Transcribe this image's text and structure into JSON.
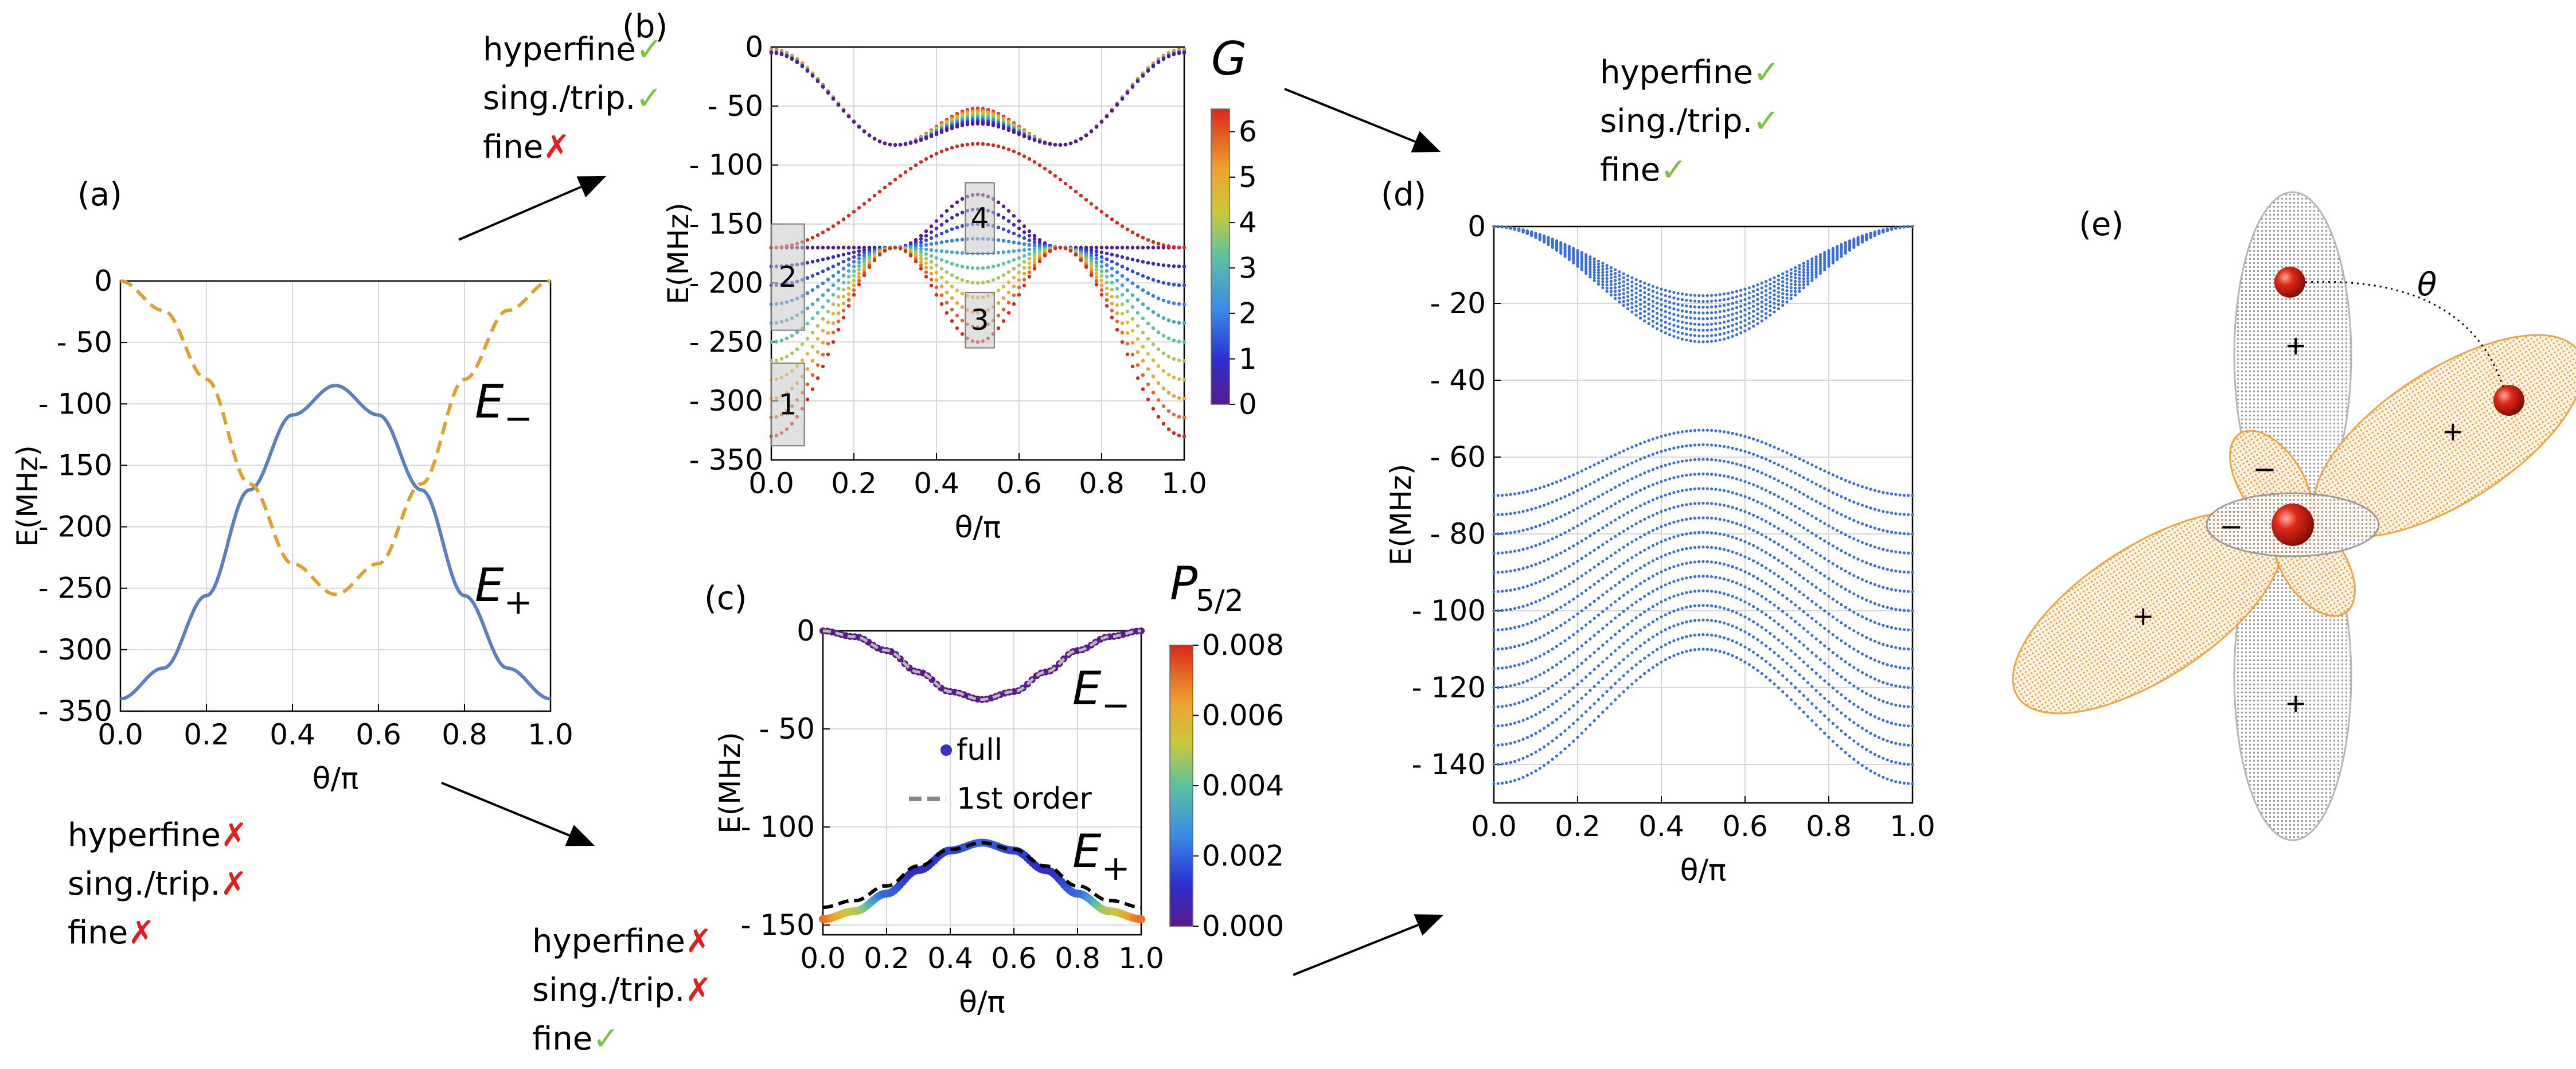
{
  "colors": {
    "blue": "#5b7fbf",
    "orange": "#e0a030",
    "dots": "#3a6fd8",
    "check": "#7cc242",
    "cross": "#e02020",
    "grid": "#d8d8d8",
    "gray_box": "#c8c8c8",
    "sphere": "#cc1a10",
    "lobe_orange": "#f5a040",
    "lobe_gray": "#9a9a9a"
  },
  "annotations": {
    "a": {
      "label": "(a)",
      "flags": [
        {
          "text": "hyperfine",
          "mark": "✗"
        },
        {
          "text": "sing./trip.",
          "mark": "✗"
        },
        {
          "text": "fine",
          "mark": "✗"
        }
      ]
    },
    "b": {
      "label": "(b)",
      "flags": [
        {
          "text": "hyperfine",
          "mark": "✓"
        },
        {
          "text": "sing./trip.",
          "mark": "✓"
        },
        {
          "text": "fine",
          "mark": "✗"
        }
      ]
    },
    "c": {
      "label": "(c)",
      "flags": [
        {
          "text": "hyperfine",
          "mark": "✗"
        },
        {
          "text": "sing./trip.",
          "mark": "✗"
        },
        {
          "text": "fine",
          "mark": "✓"
        }
      ]
    },
    "d": {
      "label": "(d)",
      "flags": [
        {
          "text": "hyperfine",
          "mark": "✓"
        },
        {
          "text": "sing./trip.",
          "mark": "✓"
        },
        {
          "text": "fine",
          "mark": "✓"
        }
      ]
    },
    "e": {
      "label": "(e)",
      "theta": "θ",
      "signs": [
        "+",
        "+",
        "+",
        "+",
        "−",
        "−"
      ]
    }
  },
  "chart_data": [
    {
      "id": "a",
      "type": "line",
      "xlabel": "θ/π",
      "ylabel": "E(MHz)",
      "xlim": [
        0,
        1
      ],
      "ylim": [
        -350,
        0
      ],
      "xticks": [
        "0.0",
        "0.2",
        "0.4",
        "0.6",
        "0.8",
        "1.0"
      ],
      "yticks": [
        "0",
        "- 50",
        "- 100",
        "- 150",
        "- 200",
        "- 250",
        "- 300",
        "- 350"
      ],
      "grid": true,
      "x": [
        0,
        0.1,
        0.2,
        0.3,
        0.4,
        0.5,
        0.6,
        0.7,
        0.8,
        0.9,
        1.0
      ],
      "series": [
        {
          "name": "E₊",
          "style": "solid",
          "color": "#5b7fbf",
          "values": [
            -340,
            -315,
            -256,
            -170,
            -109,
            -85,
            -109,
            -170,
            -256,
            -315,
            -340
          ]
        },
        {
          "name": "E₋",
          "style": "dashed",
          "color": "#e0a030",
          "values": [
            0,
            -24,
            -80,
            -165,
            -230,
            -255,
            -230,
            -165,
            -80,
            -24,
            0
          ]
        }
      ]
    },
    {
      "id": "b",
      "type": "scatter",
      "xlabel": "θ/π",
      "ylabel": "E(MHz)",
      "xlim": [
        0,
        1
      ],
      "ylim": [
        -350,
        0
      ],
      "xticks": [
        "0.0",
        "0.2",
        "0.4",
        "0.6",
        "0.8",
        "1.0"
      ],
      "yticks": [
        "0",
        "- 50",
        "- 100",
        "- 150",
        "- 200",
        "- 250",
        "- 300",
        "- 350"
      ],
      "grid": true,
      "colorbar": {
        "label": "G",
        "min": 0,
        "max": 6.5,
        "ticks": [
          "0",
          "1",
          "2",
          "3",
          "4",
          "5",
          "6"
        ]
      },
      "crossings_x": [
        0.3,
        0.7
      ],
      "upper_band": {
        "at_0": [
          -2,
          -5
        ],
        "at_crossing": -83,
        "at_0_5": [
          -52,
          -65
        ]
      },
      "lower_band": {
        "at_0": [
          -170,
          -330
        ],
        "at_crossing": -170,
        "at_0_5": [
          -125,
          -250
        ]
      },
      "mid_line": {
        "at_0": -170,
        "at_0_5": -82
      },
      "boxes": [
        {
          "label": "1",
          "x": [
            0.0,
            0.08
          ],
          "y": [
            -268,
            -338
          ]
        },
        {
          "label": "2",
          "x": [
            0.0,
            0.08
          ],
          "y": [
            -150,
            -240
          ]
        },
        {
          "label": "3",
          "x": [
            0.47,
            0.54
          ],
          "y": [
            -208,
            -255
          ]
        },
        {
          "label": "4",
          "x": [
            0.47,
            0.54
          ],
          "y": [
            -115,
            -175
          ]
        }
      ]
    },
    {
      "id": "c",
      "type": "line",
      "xlabel": "θ/π",
      "ylabel": "E(MHz)",
      "xlim": [
        0,
        1
      ],
      "ylim": [
        -155,
        0
      ],
      "xticks": [
        "0.0",
        "0.2",
        "0.4",
        "0.6",
        "0.8",
        "1.0"
      ],
      "yticks": [
        "0",
        "- 50",
        "- 100",
        "- 150"
      ],
      "grid": true,
      "colorbar": {
        "label": "P₅/₂",
        "min": 0,
        "max": 0.008,
        "ticks": [
          "0.000",
          "0.002",
          "0.004",
          "0.006",
          "0.008"
        ]
      },
      "legend": [
        {
          "label": "full"
        },
        {
          "label": "1st order"
        }
      ],
      "x": [
        0,
        0.1,
        0.2,
        0.3,
        0.4,
        0.5,
        0.6,
        0.7,
        0.8,
        0.9,
        1.0
      ],
      "series": [
        {
          "name": "E₋",
          "values": [
            0,
            -3,
            -10,
            -21,
            -31,
            -35,
            -31,
            -21,
            -10,
            -3,
            0
          ]
        },
        {
          "name": "E₊",
          "values": [
            -147,
            -143,
            -134,
            -122,
            -112,
            -108,
            -112,
            -122,
            -134,
            -143,
            -147
          ]
        }
      ],
      "p52_E_plus": [
        0.007,
        0.005,
        0.002,
        0.001,
        0.0015,
        0.002,
        0.0015,
        0.001,
        0.002,
        0.005,
        0.007
      ]
    },
    {
      "id": "d",
      "type": "scatter",
      "xlabel": "θ/π",
      "ylabel": "E(MHz)",
      "xlim": [
        0,
        1
      ],
      "ylim": [
        -150,
        0
      ],
      "xticks": [
        "0.0",
        "0.2",
        "0.4",
        "0.6",
        "0.8",
        "1.0"
      ],
      "yticks": [
        "0",
        "- 20",
        "- 40",
        "- 60",
        "- 80",
        "- 100",
        "- 120",
        "- 140"
      ],
      "grid": true,
      "upper_band": {
        "at_0": 0,
        "at_0_5": [
          -18,
          -30
        ],
        "count": 9
      },
      "lower_band": {
        "at_0": [
          -70,
          -145
        ],
        "at_0_5": [
          -53,
          -110
        ],
        "count": 16
      }
    }
  ]
}
